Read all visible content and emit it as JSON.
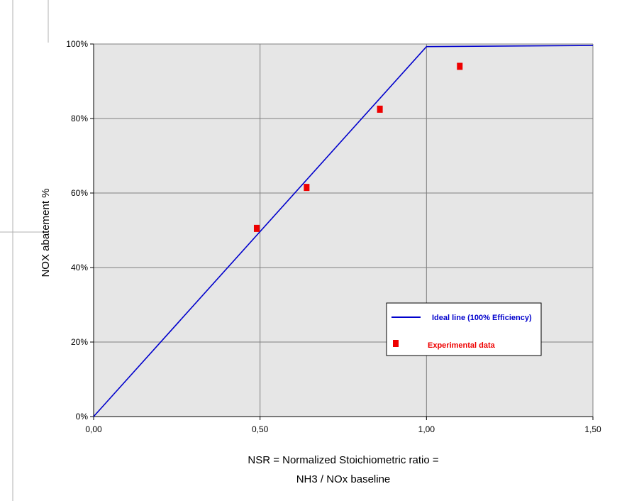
{
  "chart_data": {
    "type": "line",
    "xlabel_line1": "NSR = Normalized Stoichiometric ratio =",
    "xlabel_line2": "NH3 / NOx baseline",
    "ylabel": "NOX abatement  %",
    "xlim": [
      0,
      1.5
    ],
    "ylim": [
      0,
      100
    ],
    "x_ticks": [
      "0,00",
      "0,50",
      "1,00",
      "1,50"
    ],
    "x_tick_values": [
      0,
      0.5,
      1.0,
      1.5
    ],
    "y_ticks": [
      "0%",
      "20%",
      "40%",
      "60%",
      "80%",
      "100%"
    ],
    "y_tick_values": [
      0,
      20,
      40,
      60,
      80,
      100
    ],
    "grid": true,
    "legend_position": "lower-right",
    "series": [
      {
        "name": "Ideal line (100% Efficiency)",
        "kind": "line",
        "color": "#0000cc",
        "points": [
          [
            0,
            0
          ],
          [
            1.0,
            99.3
          ],
          [
            1.5,
            99.6
          ]
        ]
      },
      {
        "name": "Experimental data",
        "kind": "scatter",
        "marker": "square",
        "color": "#ee0000",
        "points": [
          [
            0.49,
            50.5
          ],
          [
            0.64,
            61.5
          ],
          [
            0.86,
            82.5
          ],
          [
            1.1,
            94.0
          ]
        ]
      }
    ]
  },
  "colors": {
    "plot_background": "#e6e6e6",
    "gridline": "#808080"
  }
}
